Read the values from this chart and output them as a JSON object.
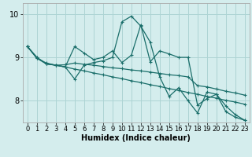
{
  "title": "",
  "xlabel": "Humidex (Indice chaleur)",
  "bg_color": "#d4eded",
  "grid_color": "#add4d4",
  "line_color": "#1a6e6a",
  "spine_color": "#aaaaaa",
  "xlim": [
    -0.5,
    23.5
  ],
  "ylim": [
    7.5,
    10.25
  ],
  "yticks": [
    8,
    9,
    10
  ],
  "xticks": [
    0,
    1,
    2,
    3,
    4,
    5,
    6,
    7,
    8,
    9,
    10,
    11,
    12,
    13,
    14,
    15,
    16,
    17,
    18,
    19,
    20,
    21,
    22,
    23
  ],
  "series": [
    [
      9.25,
      9.0,
      8.85,
      8.82,
      8.78,
      9.25,
      9.1,
      8.95,
      9.0,
      9.15,
      8.88,
      9.05,
      9.75,
      8.9,
      9.15,
      9.08,
      9.0,
      9.0,
      7.9,
      8.05,
      8.15,
      7.75,
      7.62,
      7.55
    ],
    [
      9.25,
      9.0,
      8.85,
      8.82,
      8.78,
      8.5,
      8.82,
      8.88,
      8.92,
      9.0,
      9.82,
      9.95,
      9.72,
      9.35,
      8.55,
      8.1,
      8.3,
      8.0,
      7.72,
      8.2,
      8.15,
      7.88,
      7.68,
      7.55
    ],
    [
      9.25,
      8.98,
      8.87,
      8.82,
      8.83,
      8.87,
      8.84,
      8.82,
      8.79,
      8.76,
      8.74,
      8.71,
      8.69,
      8.66,
      8.63,
      8.6,
      8.58,
      8.55,
      8.35,
      8.32,
      8.27,
      8.22,
      8.18,
      8.13
    ],
    [
      9.25,
      8.98,
      8.85,
      8.82,
      8.78,
      8.73,
      8.69,
      8.64,
      8.6,
      8.55,
      8.51,
      8.46,
      8.42,
      8.37,
      8.33,
      8.28,
      8.24,
      8.19,
      8.15,
      8.1,
      8.06,
      8.01,
      7.97,
      7.92
    ]
  ],
  "tick_fontsize": 6,
  "xlabel_fontsize": 7
}
